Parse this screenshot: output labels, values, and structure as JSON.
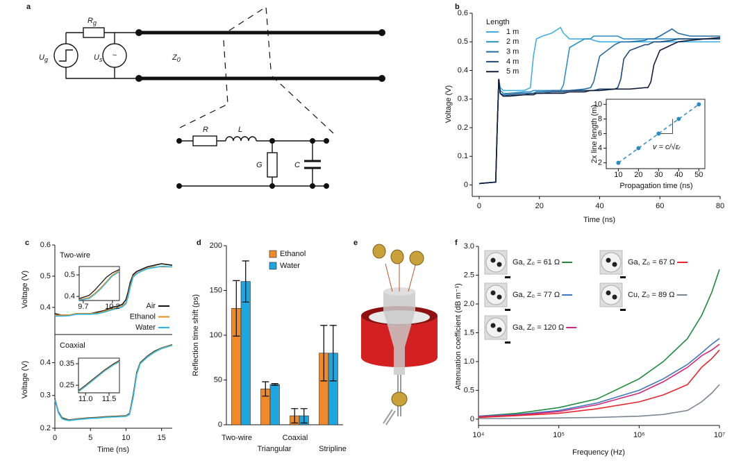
{
  "panel_labels": [
    "a",
    "b",
    "c",
    "d",
    "e",
    "f"
  ],
  "diagram": {
    "labels": [
      {
        "text": "R",
        "sub": "g"
      },
      {
        "text": "U",
        "sub": "g"
      },
      {
        "text": "U",
        "sub": "s"
      },
      {
        "text": "~"
      },
      {
        "text": "Z",
        "sub": "0"
      },
      {
        "text": "R"
      },
      {
        "text": "L"
      },
      {
        "text": "G"
      },
      {
        "text": "C"
      }
    ]
  },
  "chart_data": [
    {
      "type": "line",
      "xlabel": "Time (ns)",
      "ylabel": "Voltage (V)",
      "legend": "upper left",
      "legend_title": "Length",
      "xlim": [
        -2.3,
        80
      ],
      "ylim": [
        -0.04,
        0.6
      ],
      "xticks": [
        0,
        20,
        40,
        60,
        80
      ],
      "yticks": [
        0,
        0.1,
        0.2,
        0.3,
        0.4,
        0.5,
        0.6
      ],
      "x": [
        0,
        5.5,
        6,
        6.5,
        7,
        8,
        10,
        15,
        17,
        18,
        19,
        21,
        24,
        27,
        28,
        30,
        35,
        37,
        38,
        40,
        45,
        46,
        47,
        48,
        50,
        55,
        56,
        57,
        58,
        60,
        64,
        66,
        70,
        75,
        80
      ],
      "series": [
        {
          "name": "1 m",
          "color": "#3fb0e5",
          "values": [
            0.005,
            0.01,
            0.2,
            0.37,
            0.34,
            0.33,
            0.33,
            0.33,
            0.34,
            0.45,
            0.51,
            0.52,
            0.53,
            0.55,
            0.53,
            0.51,
            0.51,
            0.51,
            0.505,
            0.5,
            0.5,
            0.5,
            0.5,
            0.5,
            0.5,
            0.5,
            0.5,
            0.5,
            0.5,
            0.5,
            0.5,
            0.5,
            0.5,
            0.5,
            0.5
          ]
        },
        {
          "name": "2 m",
          "color": "#2a8fc7",
          "values": [
            0.005,
            0.01,
            0.2,
            0.37,
            0.33,
            0.32,
            0.32,
            0.325,
            0.325,
            0.33,
            0.33,
            0.33,
            0.33,
            0.33,
            0.35,
            0.48,
            0.51,
            0.51,
            0.52,
            0.52,
            0.52,
            0.52,
            0.515,
            0.51,
            0.51,
            0.51,
            0.51,
            0.51,
            0.51,
            0.51,
            0.51,
            0.51,
            0.51,
            0.51,
            0.51
          ]
        },
        {
          "name": "3 m",
          "color": "#216da3",
          "values": [
            0.005,
            0.01,
            0.2,
            0.37,
            0.32,
            0.315,
            0.32,
            0.32,
            0.32,
            0.32,
            0.325,
            0.325,
            0.33,
            0.33,
            0.33,
            0.33,
            0.335,
            0.34,
            0.36,
            0.45,
            0.49,
            0.495,
            0.5,
            0.5,
            0.5,
            0.505,
            0.51,
            0.51,
            0.51,
            0.52,
            0.545,
            0.53,
            0.52,
            0.52,
            0.52
          ]
        },
        {
          "name": "4 m",
          "color": "#1b4877",
          "values": [
            0.005,
            0.01,
            0.2,
            0.37,
            0.32,
            0.31,
            0.315,
            0.315,
            0.32,
            0.32,
            0.32,
            0.32,
            0.325,
            0.325,
            0.325,
            0.33,
            0.33,
            0.33,
            0.33,
            0.335,
            0.335,
            0.34,
            0.37,
            0.44,
            0.47,
            0.49,
            0.49,
            0.495,
            0.5,
            0.5,
            0.505,
            0.51,
            0.51,
            0.51,
            0.51
          ]
        },
        {
          "name": "5 m",
          "color": "#131d3a",
          "values": [
            0.005,
            0.01,
            0.2,
            0.37,
            0.32,
            0.31,
            0.31,
            0.315,
            0.315,
            0.315,
            0.32,
            0.32,
            0.32,
            0.32,
            0.32,
            0.325,
            0.325,
            0.33,
            0.33,
            0.33,
            0.335,
            0.335,
            0.335,
            0.335,
            0.335,
            0.34,
            0.34,
            0.36,
            0.42,
            0.47,
            0.49,
            0.5,
            0.505,
            0.51,
            0.515
          ]
        }
      ]
    },
    {
      "type": "scatter",
      "xlabel": "Propagation time (ns)",
      "ylabel": "2x line length (m)",
      "annotation": "v = c/√εᵣ",
      "xlim": [
        4,
        53
      ],
      "ylim": [
        1.2,
        10.7
      ],
      "xticks": [
        10,
        20,
        30,
        40,
        50
      ],
      "yticks": [
        2,
        4,
        6,
        8,
        10
      ],
      "x": [
        10,
        20,
        30,
        40,
        50
      ],
      "values": [
        2,
        4,
        6,
        8,
        10
      ],
      "color": "#2b8cc4"
    },
    {
      "type": "line",
      "title": "Two-wire",
      "ylabel": "Voltage (V)",
      "legend": "lower right",
      "xlim": [
        0,
        16.5
      ],
      "ylim": [
        0.313,
        0.6
      ],
      "yticks": [
        0.4,
        0.5,
        0.6
      ],
      "x": [
        0,
        1,
        2,
        3,
        4,
        5,
        6,
        7,
        8,
        9,
        9.5,
        10,
        10.3,
        10.6,
        11,
        11.5,
        12,
        13,
        14,
        15,
        16.5
      ],
      "series": [
        {
          "name": "Air",
          "color": "#111111",
          "values": [
            0.38,
            0.375,
            0.375,
            0.38,
            0.38,
            0.38,
            0.385,
            0.39,
            0.4,
            0.405,
            0.41,
            0.425,
            0.45,
            0.48,
            0.505,
            0.515,
            0.52,
            0.53,
            0.535,
            0.54,
            0.535
          ]
        },
        {
          "name": "Ethanol",
          "color": "#e88a1a",
          "values": [
            0.375,
            0.375,
            0.375,
            0.38,
            0.38,
            0.38,
            0.382,
            0.388,
            0.395,
            0.4,
            0.405,
            0.415,
            0.44,
            0.47,
            0.5,
            0.51,
            0.515,
            0.525,
            0.53,
            0.53,
            0.53
          ]
        },
        {
          "name": "Water",
          "color": "#29b6e8",
          "values": [
            0.372,
            0.372,
            0.373,
            0.378,
            0.378,
            0.378,
            0.38,
            0.385,
            0.392,
            0.398,
            0.402,
            0.412,
            0.435,
            0.465,
            0.497,
            0.508,
            0.514,
            0.524,
            0.528,
            0.532,
            0.53
          ]
        }
      ]
    },
    {
      "type": "line",
      "xlim": [
        9.63,
        10.32
      ],
      "ylim": [
        0.381,
        0.539
      ],
      "xticks": [
        9.7,
        10.2
      ],
      "yticks": [
        0.4,
        0.5
      ],
      "x": [
        9.63,
        9.8,
        9.9,
        10.0,
        10.1,
        10.2,
        10.32
      ],
      "series": [
        {
          "color": "#111111",
          "values": [
            0.39,
            0.405,
            0.43,
            0.46,
            0.49,
            0.51,
            0.525
          ]
        },
        {
          "color": "#e88a1a",
          "values": [
            0.385,
            0.395,
            0.415,
            0.44,
            0.47,
            0.5,
            0.52
          ]
        },
        {
          "color": "#29b6e8",
          "values": [
            0.383,
            0.39,
            0.41,
            0.435,
            0.465,
            0.495,
            0.515
          ]
        }
      ]
    },
    {
      "type": "line",
      "title": "Coaxial",
      "xlabel": "Time (ns)",
      "ylabel": "Voltage (V)",
      "xlim": [
        0,
        16.5
      ],
      "ylim": [
        0.2,
        0.486
      ],
      "xticks": [
        0,
        5,
        10,
        15
      ],
      "yticks": [
        0.2,
        0.3,
        0.4
      ],
      "x": [
        0,
        0.5,
        1,
        1.5,
        2,
        3,
        4,
        5,
        6,
        7,
        8,
        9,
        10,
        10.5,
        11,
        11.5,
        12,
        13,
        14,
        15,
        16.5
      ],
      "series": [
        {
          "color": "#111111",
          "values": [
            0.29,
            0.25,
            0.232,
            0.228,
            0.225,
            0.228,
            0.23,
            0.232,
            0.233,
            0.235,
            0.236,
            0.237,
            0.238,
            0.245,
            0.3,
            0.37,
            0.4,
            0.42,
            0.435,
            0.445,
            0.455
          ]
        },
        {
          "color": "#e88a1a",
          "values": [
            0.288,
            0.248,
            0.23,
            0.226,
            0.224,
            0.227,
            0.229,
            0.231,
            0.232,
            0.234,
            0.235,
            0.236,
            0.237,
            0.243,
            0.295,
            0.366,
            0.398,
            0.418,
            0.433,
            0.444,
            0.454
          ]
        },
        {
          "color": "#29b6e8",
          "values": [
            0.287,
            0.247,
            0.229,
            0.225,
            0.223,
            0.226,
            0.228,
            0.23,
            0.231,
            0.233,
            0.234,
            0.235,
            0.236,
            0.242,
            0.293,
            0.364,
            0.397,
            0.417,
            0.432,
            0.443,
            0.453
          ]
        }
      ]
    },
    {
      "type": "line",
      "xlim": [
        10.85,
        11.72
      ],
      "ylim": [
        0.215,
        0.376
      ],
      "xticks": [
        {
          "value": 11,
          "label": "11.0"
        },
        11.5
      ],
      "yticks": [
        0.25,
        0.35
      ],
      "x": [
        10.85,
        11.0,
        11.2,
        11.4,
        11.6,
        11.72
      ],
      "series": [
        {
          "color": "#111111",
          "values": [
            0.225,
            0.25,
            0.285,
            0.32,
            0.35,
            0.365
          ]
        },
        {
          "color": "#e88a1a",
          "values": [
            0.222,
            0.247,
            0.282,
            0.317,
            0.347,
            0.362
          ]
        },
        {
          "color": "#29b6e8",
          "values": [
            0.22,
            0.245,
            0.28,
            0.315,
            0.345,
            0.36
          ]
        }
      ]
    },
    {
      "type": "bar",
      "ylabel": "Reflection time shift (ps)",
      "legend": "upper right",
      "ylim": [
        0,
        200
      ],
      "yticks": [
        0,
        50,
        100,
        150,
        200
      ],
      "categories": [
        "Two-wire",
        "Triangular",
        "Coaxial",
        "Stripline"
      ],
      "series": [
        {
          "name": "Ethanol",
          "color": "#f0892a",
          "values": [
            130,
            40,
            10,
            80
          ],
          "errors": [
            31,
            8,
            8,
            31
          ]
        },
        {
          "name": "Water",
          "color": "#1da6e0",
          "values": [
            160,
            45,
            10,
            80
          ],
          "errors": [
            23,
            1,
            8,
            31
          ]
        }
      ]
    },
    {
      "type": "line",
      "xlabel": "Frequency (Hz)",
      "ylabel": "Attenuation coefficient (dB m⁻¹)",
      "legend": "upper left",
      "xlog": true,
      "xlim": [
        10000,
        10000000
      ],
      "ylim": [
        -0.11,
        3
      ],
      "xticks": [
        {
          "value": 10000,
          "label": "10⁴"
        },
        {
          "value": 100000,
          "label": "10⁵"
        },
        {
          "value": 1000000,
          "label": "10⁶"
        },
        {
          "value": 10000000,
          "label": "10⁷"
        }
      ],
      "yticks": [
        0,
        0.5,
        {
          "value": 1,
          "label": "1.0"
        },
        1.5,
        {
          "value": 2,
          "label": "2.0"
        },
        2.5,
        {
          "value": 3,
          "label": "3.0"
        }
      ],
      "x": [
        10000,
        30000,
        100000,
        300000,
        1000000,
        2000000,
        4000000,
        6000000,
        8000000,
        10000000
      ],
      "series": [
        {
          "name": "Ga, Z₀ = 61 Ω",
          "color": "#1e8a3c",
          "values": [
            0.05,
            0.1,
            0.2,
            0.35,
            0.7,
            1.0,
            1.4,
            1.8,
            2.2,
            2.6
          ]
        },
        {
          "name": "Ga, Z₀ = 77 Ω",
          "color": "#3a78c0",
          "values": [
            0.05,
            0.08,
            0.15,
            0.28,
            0.5,
            0.7,
            0.95,
            1.15,
            1.3,
            1.4
          ]
        },
        {
          "name": "Ga, Z₀ = 120 Ω",
          "color": "#d6247a",
          "values": [
            0.04,
            0.07,
            0.13,
            0.25,
            0.45,
            0.65,
            0.9,
            1.1,
            1.2,
            1.3
          ]
        },
        {
          "name": "Ga, Z₀ = 67 Ω",
          "color": "#e8262c",
          "values": [
            0.03,
            0.06,
            0.1,
            0.18,
            0.3,
            0.42,
            0.6,
            0.9,
            1.05,
            1.2
          ]
        },
        {
          "name": "Cu, Z₀ = 89 Ω",
          "color": "#7a8594",
          "values": [
            0.01,
            0.01,
            0.02,
            0.03,
            0.05,
            0.08,
            0.15,
            0.3,
            0.45,
            0.6
          ]
        }
      ]
    }
  ]
}
